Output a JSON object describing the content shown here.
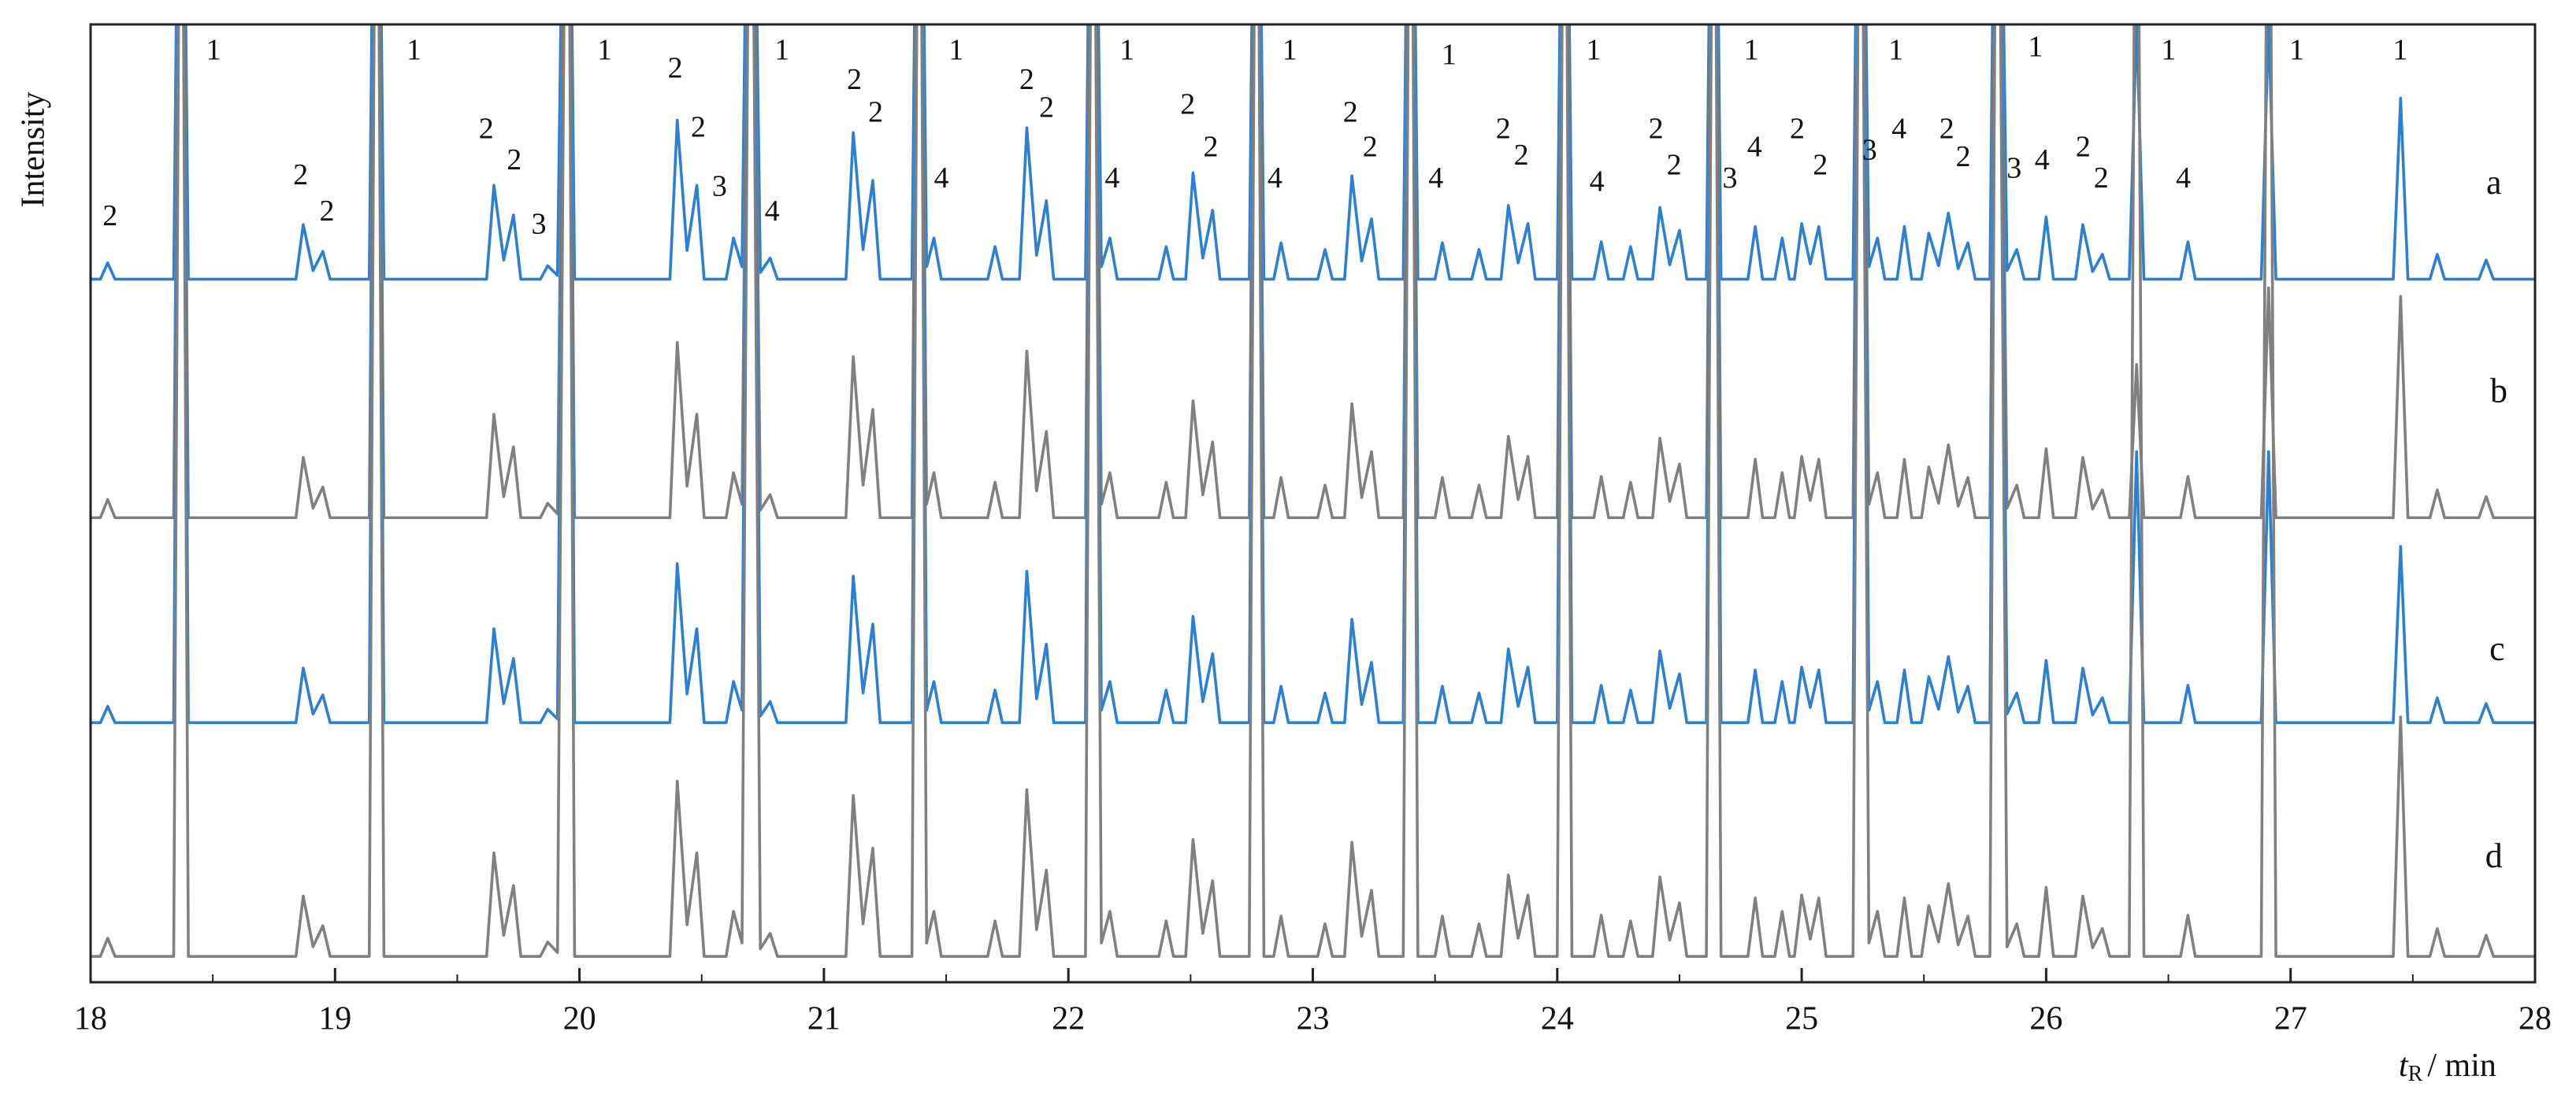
{
  "chart_data": {
    "type": "line",
    "ylabel": "Intensity",
    "xlabel": {
      "symbol": "t",
      "subscript": "R",
      "unit": "/ min"
    },
    "xlim": [
      18,
      28
    ],
    "xticks": [
      18,
      19,
      20,
      21,
      22,
      23,
      24,
      25,
      26,
      27,
      28
    ],
    "xminorticks": [
      18.5,
      19.5,
      20.5,
      21.5,
      22.5,
      23.5,
      24.5,
      25.5,
      26.5,
      27.5
    ],
    "ylim": [
      0,
      100
    ],
    "x": [
      18.0,
      18.04,
      18.07,
      18.1,
      18.34,
      18.37,
      18.4,
      18.84,
      18.87,
      18.91,
      18.95,
      18.98,
      19.14,
      19.17,
      19.2,
      19.62,
      19.65,
      19.69,
      19.73,
      19.76,
      19.84,
      19.87,
      19.91,
      19.95,
      19.98,
      20.37,
      20.4,
      20.44,
      20.48,
      20.51,
      20.6,
      20.63,
      20.665,
      20.7,
      20.74,
      20.78,
      20.81,
      21.09,
      21.12,
      21.16,
      21.2,
      21.23,
      21.36,
      21.39,
      21.42,
      21.45,
      21.48,
      21.67,
      21.7,
      21.73,
      21.8,
      21.83,
      21.87,
      21.91,
      21.94,
      22.07,
      22.1,
      22.135,
      22.17,
      22.2,
      22.37,
      22.4,
      22.43,
      22.48,
      22.51,
      22.55,
      22.59,
      22.62,
      22.74,
      22.77,
      22.8,
      22.84,
      22.87,
      22.9,
      23.02,
      23.05,
      23.08,
      23.13,
      23.16,
      23.2,
      23.24,
      23.27,
      23.37,
      23.4,
      23.43,
      23.5,
      23.53,
      23.56,
      23.65,
      23.68,
      23.71,
      23.77,
      23.8,
      23.84,
      23.88,
      23.91,
      24.0,
      24.03,
      24.06,
      24.15,
      24.18,
      24.21,
      24.27,
      24.3,
      24.33,
      24.39,
      24.42,
      24.46,
      24.5,
      24.53,
      24.61,
      24.64,
      24.67,
      24.78,
      24.81,
      24.84,
      24.89,
      24.92,
      24.95,
      24.97,
      25.0,
      25.035,
      25.07,
      25.1,
      25.21,
      25.24,
      25.275,
      25.31,
      25.34,
      25.39,
      25.42,
      25.45,
      25.49,
      25.52,
      25.56,
      25.6,
      25.64,
      25.68,
      25.71,
      25.77,
      25.8,
      25.84,
      25.88,
      25.91,
      25.97,
      26.0,
      26.03,
      26.12,
      26.15,
      26.19,
      26.23,
      26.26,
      26.34,
      26.37,
      26.4,
      26.55,
      26.58,
      26.61,
      26.88,
      26.91,
      26.94,
      27.42,
      27.45,
      27.48,
      27.57,
      27.6,
      27.63,
      27.77,
      27.8,
      27.83,
      28.0
    ],
    "series": [
      {
        "name": "a",
        "color": "#2b80d3",
        "values": [
          73.4,
          73.4,
          75.1,
          73.4,
          73.4,
          150,
          73.4,
          73.4,
          79.1,
          74.3,
          76.3,
          73.4,
          73.4,
          150,
          73.4,
          73.4,
          83.2,
          75.4,
          80.1,
          73.4,
          73.4,
          74.8,
          73.8,
          150,
          73.4,
          73.4,
          90.0,
          76.4,
          83.2,
          73.4,
          73.4,
          77.7,
          74.7,
          150,
          74.1,
          75.6,
          73.4,
          73.4,
          88.7,
          76.5,
          83.7,
          73.4,
          73.4,
          150,
          74.7,
          77.7,
          73.4,
          73.4,
          76.8,
          73.4,
          73.4,
          89.2,
          75.9,
          81.6,
          73.4,
          73.4,
          150,
          74.7,
          77.7,
          73.4,
          73.4,
          76.8,
          73.4,
          73.4,
          84.5,
          75.6,
          80.6,
          73.4,
          73.4,
          150,
          73.4,
          73.4,
          77.2,
          73.4,
          73.4,
          76.5,
          73.4,
          73.4,
          84.2,
          75.3,
          79.7,
          73.4,
          73.4,
          150,
          73.4,
          73.4,
          77.2,
          73.4,
          73.4,
          76.5,
          73.4,
          73.4,
          81.1,
          75.1,
          79.2,
          73.4,
          73.4,
          150,
          73.4,
          73.4,
          77.3,
          73.4,
          73.4,
          76.8,
          73.4,
          73.4,
          80.9,
          74.9,
          78.5,
          73.4,
          73.4,
          150,
          73.4,
          73.4,
          78.9,
          73.4,
          73.4,
          77.7,
          73.4,
          73.4,
          79.2,
          75.0,
          78.9,
          73.4,
          73.4,
          150,
          74.7,
          77.7,
          73.4,
          73.4,
          78.9,
          73.4,
          73.4,
          78.2,
          74.8,
          80.3,
          74.5,
          77.2,
          73.4,
          73.4,
          150,
          74.3,
          76.5,
          73.4,
          73.4,
          79.9,
          73.4,
          73.4,
          79.1,
          74.2,
          76.0,
          73.4,
          73.4,
          100.4,
          73.4,
          73.4,
          77.3,
          73.4,
          73.4,
          100.4,
          73.4,
          73.4,
          92.3,
          73.4,
          73.4,
          76.0,
          73.4,
          73.4,
          75.4,
          73.4,
          73.4
        ]
      },
      {
        "name": "b",
        "color": "#808080",
        "values": [
          48.5,
          48.5,
          50.4,
          48.5,
          48.5,
          150,
          48.5,
          48.5,
          54.8,
          49.5,
          51.7,
          48.5,
          48.5,
          150,
          48.5,
          48.5,
          59.3,
          50.7,
          55.9,
          48.5,
          48.5,
          50.0,
          48.9,
          150,
          48.5,
          48.5,
          66.8,
          51.8,
          59.3,
          48.5,
          48.5,
          53.2,
          49.9,
          150,
          49.3,
          50.9,
          48.5,
          48.5,
          65.3,
          51.9,
          59.8,
          48.5,
          48.5,
          150,
          49.9,
          53.2,
          48.5,
          48.5,
          52.2,
          48.5,
          48.5,
          65.9,
          51.3,
          57.5,
          48.5,
          48.5,
          150,
          49.9,
          53.2,
          48.5,
          48.5,
          52.2,
          48.5,
          48.5,
          60.7,
          50.9,
          56.4,
          48.5,
          48.5,
          150,
          48.5,
          48.5,
          52.7,
          48.5,
          48.5,
          51.9,
          48.5,
          48.5,
          60.4,
          50.6,
          55.4,
          48.5,
          48.5,
          150,
          48.5,
          48.5,
          52.7,
          48.5,
          48.5,
          51.9,
          48.5,
          48.5,
          57.0,
          50.4,
          54.9,
          48.5,
          48.5,
          150,
          48.5,
          48.5,
          52.8,
          48.5,
          48.5,
          52.2,
          48.5,
          48.5,
          56.8,
          50.2,
          54.1,
          48.5,
          48.5,
          150,
          48.5,
          48.5,
          54.6,
          48.5,
          48.5,
          53.2,
          48.5,
          48.5,
          54.9,
          50.3,
          54.6,
          48.5,
          48.5,
          150,
          49.9,
          53.2,
          48.5,
          48.5,
          54.6,
          48.5,
          48.5,
          53.8,
          50.0,
          56.1,
          49.7,
          52.7,
          48.5,
          48.5,
          150,
          49.5,
          51.9,
          48.5,
          48.5,
          55.7,
          48.5,
          48.5,
          54.8,
          49.4,
          51.4,
          48.5,
          48.5,
          64.5,
          48.5,
          48.5,
          52.8,
          48.5,
          48.5,
          72.5,
          48.5,
          48.5,
          71.6,
          48.5,
          48.5,
          51.4,
          48.5,
          48.5,
          50.7,
          48.5,
          48.5
        ]
      },
      {
        "name": "c",
        "color": "#2b80d3",
        "values": [
          27.1,
          27.1,
          28.8,
          27.1,
          27.1,
          150,
          27.1,
          27.1,
          32.8,
          28.0,
          30.0,
          27.1,
          27.1,
          150,
          27.1,
          27.1,
          36.9,
          29.1,
          33.8,
          27.1,
          27.1,
          28.5,
          27.5,
          150,
          27.1,
          27.1,
          43.7,
          30.1,
          36.9,
          27.1,
          27.1,
          31.4,
          28.4,
          150,
          27.8,
          29.3,
          27.1,
          27.1,
          42.4,
          30.2,
          37.4,
          27.1,
          27.1,
          150,
          28.4,
          31.4,
          27.1,
          27.1,
          30.5,
          27.1,
          27.1,
          42.9,
          29.6,
          35.3,
          27.1,
          27.1,
          150,
          28.4,
          31.4,
          27.1,
          27.1,
          30.5,
          27.1,
          27.1,
          38.2,
          29.3,
          34.3,
          27.1,
          27.1,
          150,
          27.1,
          27.1,
          30.9,
          27.1,
          27.1,
          30.2,
          27.1,
          27.1,
          37.9,
          29.0,
          33.4,
          27.1,
          27.1,
          150,
          27.1,
          27.1,
          30.9,
          27.1,
          27.1,
          30.2,
          27.1,
          27.1,
          34.8,
          28.8,
          32.9,
          27.1,
          27.1,
          150,
          27.1,
          27.1,
          31.0,
          27.1,
          27.1,
          30.5,
          27.1,
          27.1,
          34.6,
          28.6,
          32.2,
          27.1,
          27.1,
          150,
          27.1,
          27.1,
          32.6,
          27.1,
          27.1,
          31.4,
          27.1,
          27.1,
          32.9,
          28.7,
          32.6,
          27.1,
          27.1,
          150,
          28.4,
          31.4,
          27.1,
          27.1,
          32.6,
          27.1,
          27.1,
          31.9,
          28.5,
          34.0,
          28.2,
          30.9,
          27.1,
          27.1,
          150,
          28.0,
          30.2,
          27.1,
          27.1,
          33.6,
          27.1,
          27.1,
          32.8,
          27.9,
          29.7,
          27.1,
          27.1,
          55.4,
          27.1,
          27.1,
          31.0,
          27.1,
          27.1,
          55.4,
          27.1,
          27.1,
          45.5,
          27.1,
          27.1,
          29.7,
          27.1,
          27.1,
          29.1,
          27.1,
          27.1
        ]
      },
      {
        "name": "d",
        "color": "#808080",
        "values": [
          2.7,
          2.7,
          4.6,
          2.7,
          2.7,
          150,
          2.7,
          2.7,
          9.0,
          3.7,
          5.9,
          2.7,
          2.7,
          150,
          2.7,
          2.7,
          13.5,
          4.9,
          10.1,
          2.7,
          2.7,
          4.2,
          3.1,
          150,
          2.7,
          2.7,
          21.0,
          6.0,
          13.5,
          2.7,
          2.7,
          7.4,
          4.1,
          150,
          3.5,
          5.1,
          2.7,
          2.7,
          19.5,
          6.1,
          14.0,
          2.7,
          2.7,
          150,
          4.1,
          7.4,
          2.7,
          2.7,
          6.4,
          2.7,
          2.7,
          20.1,
          5.5,
          11.7,
          2.7,
          2.7,
          150,
          4.1,
          7.4,
          2.7,
          2.7,
          6.4,
          2.7,
          2.7,
          14.9,
          5.1,
          10.6,
          2.7,
          2.7,
          150,
          2.7,
          2.7,
          6.9,
          2.7,
          2.7,
          6.1,
          2.7,
          2.7,
          14.6,
          4.8,
          9.6,
          2.7,
          2.7,
          150,
          2.7,
          2.7,
          6.9,
          2.7,
          2.7,
          6.1,
          2.7,
          2.7,
          11.2,
          4.6,
          9.1,
          2.7,
          2.7,
          150,
          2.7,
          2.7,
          7.0,
          2.7,
          2.7,
          6.4,
          2.7,
          2.7,
          11.0,
          4.4,
          8.3,
          2.7,
          2.7,
          150,
          2.7,
          2.7,
          8.8,
          2.7,
          2.7,
          7.4,
          2.7,
          2.7,
          9.1,
          4.5,
          8.8,
          2.7,
          2.7,
          150,
          4.1,
          7.4,
          2.7,
          2.7,
          8.8,
          2.7,
          2.7,
          8.0,
          4.2,
          10.3,
          3.9,
          6.9,
          2.7,
          2.7,
          150,
          3.7,
          6.1,
          2.7,
          2.7,
          9.9,
          2.7,
          2.7,
          9.0,
          3.6,
          5.6,
          2.7,
          2.7,
          150,
          2.7,
          2.7,
          7.0,
          2.7,
          2.7,
          150,
          2.7,
          2.7,
          27.7,
          2.7,
          2.7,
          5.6,
          2.7,
          2.7,
          4.9,
          2.7,
          2.7
        ]
      }
    ],
    "annotations": [
      "2",
      "1",
      "2",
      "2",
      "1",
      "2",
      "2",
      "3",
      "1",
      "2",
      "2",
      "3",
      "1",
      "4",
      "2",
      "2",
      "1",
      "4",
      "2",
      "2",
      "1",
      "4",
      "2",
      "2",
      "1",
      "4",
      "2",
      "2",
      "1",
      "4",
      "2",
      "2",
      "1",
      "4",
      "2",
      "2",
      "1",
      "3",
      "4",
      "2",
      "2",
      "1",
      "3",
      "4",
      "2",
      "2",
      "1",
      "3",
      "4",
      "2",
      "2",
      "1",
      "4",
      "1",
      "1"
    ]
  }
}
